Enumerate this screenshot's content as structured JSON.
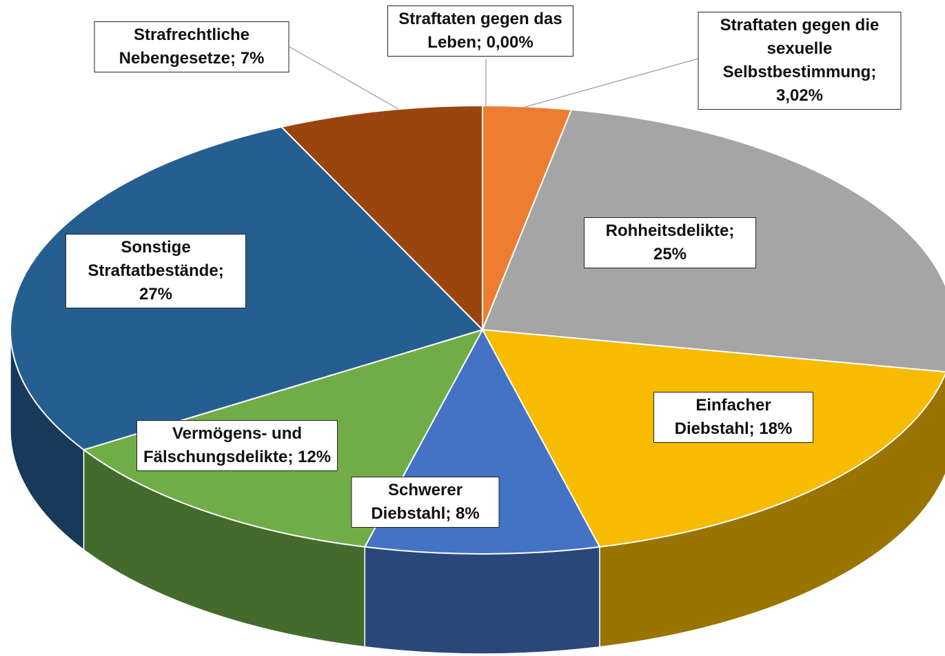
{
  "chart_data": {
    "type": "pie3d",
    "categories": [
      "Straftaten gegen das Leben;",
      "Straftaten gegen die sexuelle Selbstbestimmung;",
      "Rohheitsdelikte;",
      "Einfacher Diebstahl;",
      "Schwerer Diebstahl;",
      "Vermögens- und Fälschungsdelikte;",
      "Sonstige Straftatbestände;",
      "Strafrechtliche Nebengesetze;"
    ],
    "values": [
      0,
      3.02,
      25,
      18,
      8,
      12,
      27,
      7
    ],
    "value_labels": [
      "0,00%",
      "3,02%",
      "25%",
      "18%",
      "8%",
      "12%",
      "27%",
      "7%"
    ],
    "colors": [
      "#ed7d31",
      "#ed7d31",
      "#a5a5a5",
      "#f7bb00",
      "#4472c4",
      "#70ad47",
      "#255e91",
      "#9b450e"
    ]
  }
}
